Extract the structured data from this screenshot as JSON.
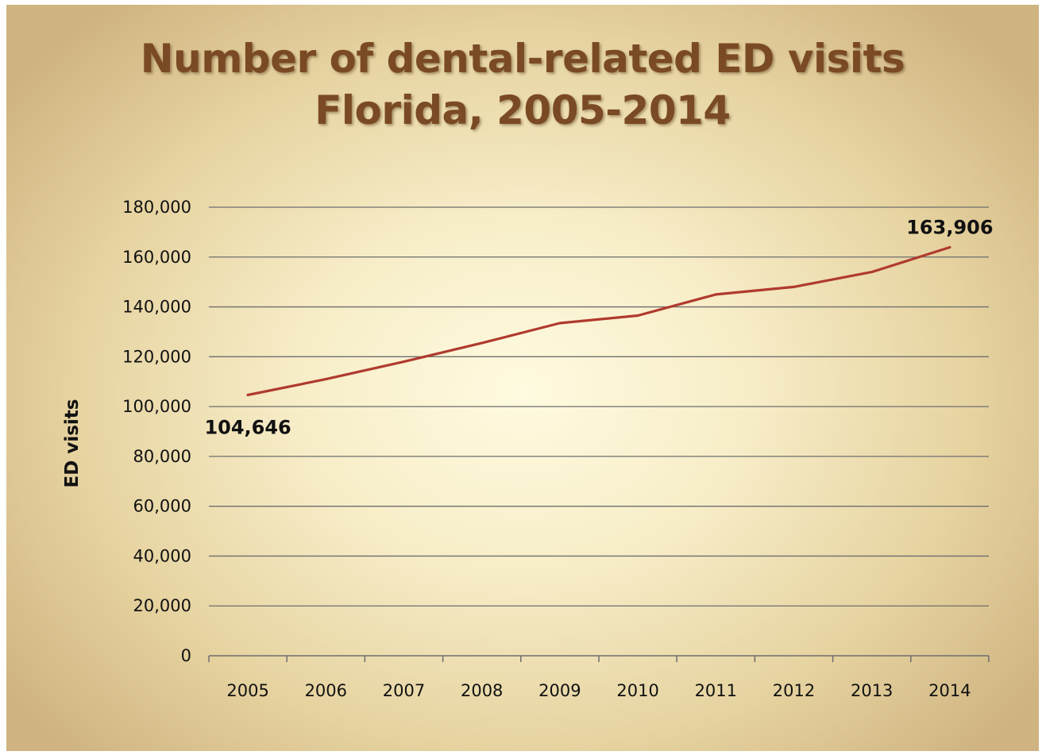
{
  "chart_data": {
    "type": "line",
    "title_line1": "Number of dental-related ED visits",
    "title_line2": "Florida, 2005-2014",
    "ylabel": "ED visits",
    "xlabel": "",
    "categories": [
      "2005",
      "2006",
      "2007",
      "2008",
      "2009",
      "2010",
      "2011",
      "2012",
      "2013",
      "2014"
    ],
    "values": [
      104646,
      111000,
      118000,
      125500,
      133500,
      136500,
      145000,
      148000,
      154000,
      163906
    ],
    "ylim": [
      0,
      180000
    ],
    "yticks": [
      0,
      20000,
      40000,
      60000,
      80000,
      100000,
      120000,
      140000,
      160000,
      180000
    ],
    "ytick_labels": [
      "0",
      "20,000",
      "40,000",
      "60,000",
      "80,000",
      "100,000",
      "120,000",
      "140,000",
      "160,000",
      "180,000"
    ],
    "data_labels": [
      {
        "index": 0,
        "text": "104,646",
        "placement": "below"
      },
      {
        "index": 9,
        "text": "163,906",
        "placement": "above"
      }
    ],
    "grid": true,
    "legend": "none",
    "line_color": "#b03a2e",
    "grid_color": "#6e6e6e"
  }
}
